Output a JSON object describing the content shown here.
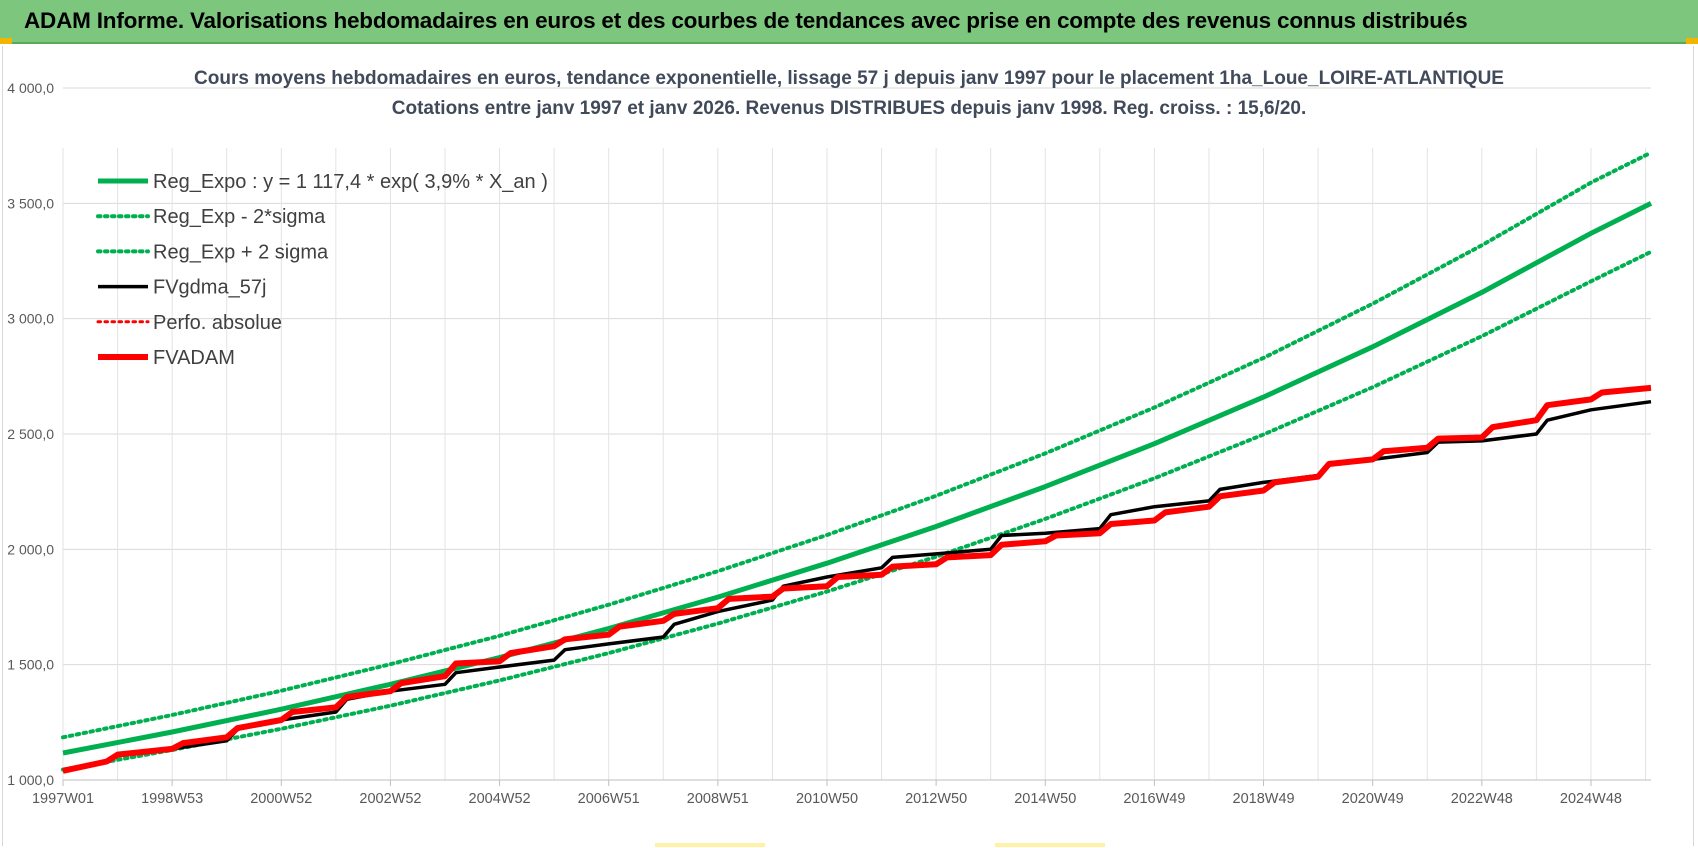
{
  "banner": {
    "title": "ADAM Informe. Valorisations hebdomadaires en euros et des courbes de tendances avec prise en compte des revenus connus distribués",
    "color": "#7dc67d"
  },
  "chart_data": {
    "type": "line",
    "title": "Cours moyens hebdomadaires en euros, tendance exponentielle, lissage 57 j depuis janv 1997  pour le placement 1ha_Loue_LOIRE-ATLANTIQUE",
    "subtitle": "Cotations entre janv 1997 et janv 2026. Revenus DISTRIBUES depuis janv 1998.  Reg. croiss. : 15,6/20.",
    "xlabel": "",
    "ylabel": "",
    "xlim": [
      1997.0,
      2026.1
    ],
    "ylim": [
      1000,
      4000
    ],
    "grid": true,
    "legend_position": "top-left",
    "y_ticks": [
      "1 000,0",
      "1 500,0",
      "2 000,0",
      "2 500,0",
      "3 000,0",
      "3 500,0",
      "4 000,0"
    ],
    "y_tick_values": [
      1000,
      1500,
      2000,
      2500,
      3000,
      3500,
      4000
    ],
    "x_ticks": [
      "1997W01",
      "1998W53",
      "2000W52",
      "2002W52",
      "2004W52",
      "2006W51",
      "2008W51",
      "2010W50",
      "2012W50",
      "2014W50",
      "2016W49",
      "2018W49",
      "2020W49",
      "2022W48",
      "2024W48"
    ],
    "x_tick_values": [
      1997.0,
      1999.0,
      2001.0,
      2003.0,
      2005.0,
      2007.0,
      2009.0,
      2011.0,
      2013.0,
      2015.0,
      2017.0,
      2019.0,
      2021.0,
      2023.0,
      2025.0
    ],
    "series": [
      {
        "name": "Reg_Expo : y = 1 117,4 * exp( 3,9% *  X_an )",
        "color": "#00b050",
        "style": "solid",
        "x": [
          1997.0,
          1999.0,
          2001.0,
          2003.0,
          2005.0,
          2007.0,
          2009.0,
          2011.0,
          2013.0,
          2015.0,
          2017.0,
          2019.0,
          2021.0,
          2023.0,
          2025.0,
          2026.1
        ],
        "values": [
          1117,
          1208,
          1307,
          1415,
          1531,
          1657,
          1793,
          1940,
          2099,
          2272,
          2458,
          2660,
          2878,
          3114,
          3370,
          3500
        ]
      },
      {
        "name": "Reg_Exp - 2*sigma",
        "color": "#00b050",
        "style": "dotted",
        "x": [
          1997.0,
          1999.0,
          2001.0,
          2003.0,
          2005.0,
          2007.0,
          2009.0,
          2011.0,
          2013.0,
          2015.0,
          2017.0,
          2019.0,
          2021.0,
          2023.0,
          2025.0,
          2026.1
        ],
        "values": [
          1045,
          1130,
          1222,
          1322,
          1432,
          1550,
          1678,
          1817,
          1968,
          2132,
          2308,
          2498,
          2703,
          2924,
          3162,
          3290
        ]
      },
      {
        "name": "Reg_Exp + 2 sigma",
        "color": "#00b050",
        "style": "dotted",
        "x": [
          1997.0,
          1999.0,
          2001.0,
          2003.0,
          2005.0,
          2007.0,
          2009.0,
          2011.0,
          2013.0,
          2015.0,
          2017.0,
          2019.0,
          2021.0,
          2023.0,
          2025.0,
          2026.1
        ],
        "values": [
          1185,
          1282,
          1387,
          1502,
          1625,
          1760,
          1905,
          2062,
          2232,
          2416,
          2615,
          2830,
          3065,
          3318,
          3590,
          3720
        ]
      },
      {
        "name": "FVgdma_57j",
        "color": "#000000",
        "style": "solid",
        "x": [
          1997.0,
          1997.8,
          1998.0,
          1999.0,
          2000.0,
          2000.2,
          2001.0,
          2002.0,
          2002.2,
          2003.0,
          2004.0,
          2004.2,
          2005.0,
          2006.0,
          2006.2,
          2007.0,
          2008.0,
          2008.2,
          2009.0,
          2010.0,
          2010.2,
          2011.0,
          2012.0,
          2012.2,
          2013.0,
          2014.0,
          2014.2,
          2015.0,
          2016.0,
          2016.2,
          2017.0,
          2018.0,
          2018.2,
          2019.0,
          2020.0,
          2020.2,
          2021.0,
          2022.0,
          2022.2,
          2023.0,
          2024.0,
          2024.2,
          2025.0,
          2026.1
        ],
        "values": [
          1040,
          1080,
          1110,
          1135,
          1170,
          1220,
          1260,
          1295,
          1350,
          1385,
          1415,
          1465,
          1490,
          1520,
          1565,
          1590,
          1620,
          1675,
          1730,
          1780,
          1840,
          1880,
          1920,
          1965,
          1980,
          2000,
          2060,
          2070,
          2090,
          2150,
          2185,
          2210,
          2260,
          2290,
          2320,
          2375,
          2390,
          2420,
          2465,
          2470,
          2500,
          2560,
          2605,
          2640
        ]
      },
      {
        "name": "Perfo. absolue",
        "color": "#ff0000",
        "style": "dotted",
        "x": [],
        "values": []
      },
      {
        "name": "FVADAM",
        "color": "#ff0000",
        "style": "solid",
        "x": [
          1997.0,
          1997.5,
          1997.8,
          1998.0,
          1999.0,
          1999.2,
          2000.0,
          2000.2,
          2001.0,
          2001.2,
          2002.0,
          2002.2,
          2003.0,
          2003.2,
          2004.0,
          2004.2,
          2005.0,
          2005.2,
          2006.0,
          2006.2,
          2007.0,
          2007.2,
          2008.0,
          2008.2,
          2009.0,
          2009.2,
          2010.0,
          2010.2,
          2011.0,
          2011.2,
          2012.0,
          2012.2,
          2013.0,
          2013.2,
          2014.0,
          2014.2,
          2015.0,
          2015.2,
          2016.0,
          2016.2,
          2017.0,
          2017.2,
          2018.0,
          2018.2,
          2019.0,
          2019.2,
          2020.0,
          2020.2,
          2021.0,
          2021.2,
          2022.0,
          2022.2,
          2023.0,
          2023.2,
          2024.0,
          2024.2,
          2025.0,
          2025.2,
          2026.1
        ],
        "values": [
          1040,
          1065,
          1080,
          1110,
          1135,
          1160,
          1185,
          1225,
          1260,
          1295,
          1315,
          1360,
          1385,
          1420,
          1450,
          1505,
          1515,
          1550,
          1580,
          1610,
          1630,
          1665,
          1690,
          1720,
          1745,
          1785,
          1795,
          1830,
          1840,
          1880,
          1890,
          1925,
          1935,
          1965,
          1975,
          2020,
          2035,
          2060,
          2070,
          2110,
          2125,
          2160,
          2185,
          2230,
          2255,
          2290,
          2315,
          2370,
          2390,
          2425,
          2440,
          2480,
          2485,
          2530,
          2560,
          2625,
          2650,
          2680,
          2700
        ]
      }
    ]
  }
}
